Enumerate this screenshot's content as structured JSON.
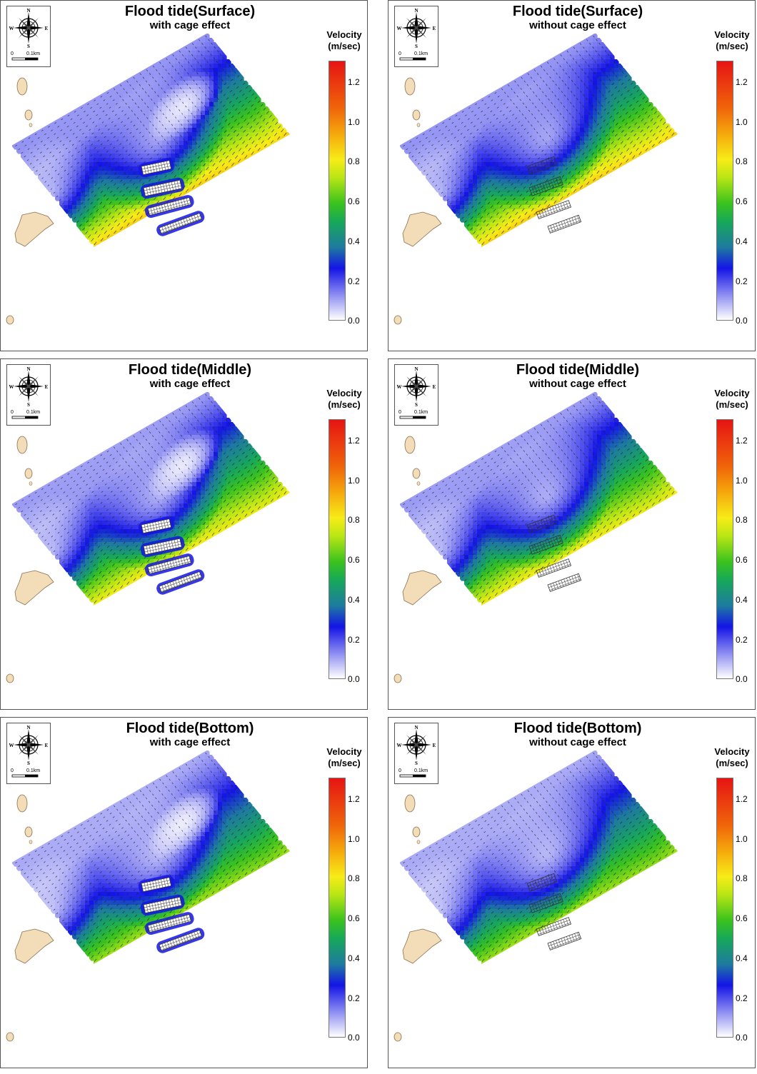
{
  "panels": [
    {
      "title": "Flood tide(Surface)",
      "subtitle": "with cage effect",
      "variant": "surf_with"
    },
    {
      "title": "Flood tide(Surface)",
      "subtitle": "without cage effect",
      "variant": "surf_without"
    },
    {
      "title": "Flood tide(Middle)",
      "subtitle": "with cage effect",
      "variant": "mid_with"
    },
    {
      "title": "Flood tide(Middle)",
      "subtitle": "without cage effect",
      "variant": "mid_without"
    },
    {
      "title": "Flood tide(Bottom)",
      "subtitle": "with cage effect",
      "variant": "bot_with"
    },
    {
      "title": "Flood tide(Bottom)",
      "subtitle": "without cage effect",
      "variant": "bot_without"
    }
  ],
  "legend": {
    "title_line1": "Velocity",
    "title_line2": "(m/sec)",
    "ticks": [
      "1.2",
      "1.0",
      "0.8",
      "0.6",
      "0.4",
      "0.2",
      "0.0"
    ]
  },
  "compass": {
    "n": "N",
    "s": "S",
    "e": "E",
    "w": "W",
    "scale_start": "0",
    "scale_end": "0.1km"
  },
  "colors": {
    "land": "#f3dcb8",
    "land_stroke": "#8a7050",
    "low": "#ffffff",
    "high": "#e61414"
  }
}
